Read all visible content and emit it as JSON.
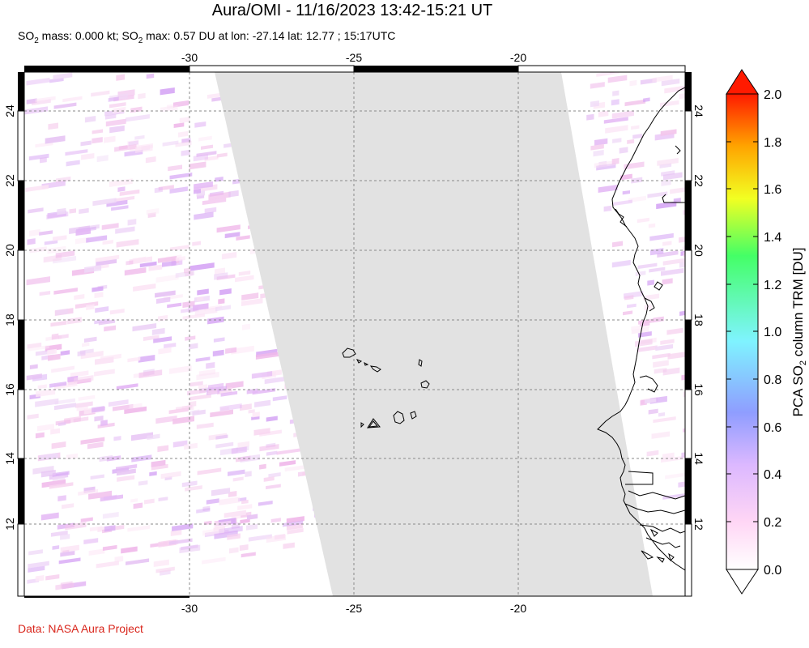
{
  "title": "Aura/OMI - 11/16/2023 13:42-15:21 UT",
  "subtitle": {
    "part1": "SO",
    "sub1": "2",
    "part2": " mass: 0.000 kt; SO",
    "sub2": "2",
    "part3": " max: 0.57 DU at lon: -27.14 lat: 12.77 ; 15:17UTC"
  },
  "credit": "Data: NASA Aura Project",
  "map": {
    "lon_range": [
      -35,
      -15
    ],
    "lat_range": [
      10,
      25
    ],
    "lon_ticks": [
      "-30",
      "-25",
      "-20"
    ],
    "lat_ticks": [
      "12",
      "14",
      "16",
      "18",
      "20",
      "22",
      "24"
    ],
    "no_data_color": "#e2e2e2",
    "grid": "dotted"
  },
  "colorbar": {
    "label": "PCA SO2 column TRM [DU]",
    "label_parts": {
      "pre": "PCA SO",
      "sub": "2",
      "post": " column TRM [DU]"
    },
    "ticks": [
      "0.0",
      "0.2",
      "0.4",
      "0.6",
      "0.8",
      "1.0",
      "1.2",
      "1.4",
      "1.6",
      "1.8",
      "2.0"
    ],
    "min": 0.0,
    "max": 2.0,
    "colors": [
      "#ffffff",
      "#ffd6f5",
      "#dcb8ff",
      "#8f9dff",
      "#7ff3ff",
      "#44ff66",
      "#f2ff22",
      "#ffa400",
      "#ff1a00"
    ]
  }
}
